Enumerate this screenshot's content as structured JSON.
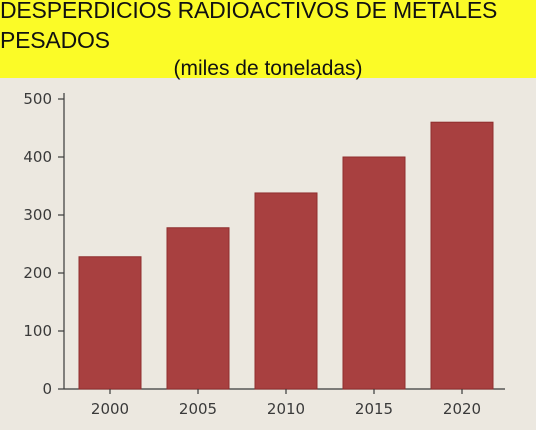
{
  "chart_data": {
    "type": "bar",
    "title": "DESPERDICIOS RADIOACTIVOS DE METALES PESADOS",
    "subtitle": "(miles de toneladas)",
    "categories": [
      "2000",
      "2005",
      "2010",
      "2015",
      "2020"
    ],
    "values": [
      228,
      278,
      338,
      400,
      460
    ],
    "ylim": [
      0,
      500
    ],
    "yticks": [
      0,
      100,
      200,
      300,
      400,
      500
    ],
    "grid": false,
    "colors": {
      "bar": "#a84040",
      "bar_edge": "#8f2e2e",
      "banner": "#fbfb27",
      "background": "#ece8e0",
      "axis": "#3a3a3a"
    }
  }
}
